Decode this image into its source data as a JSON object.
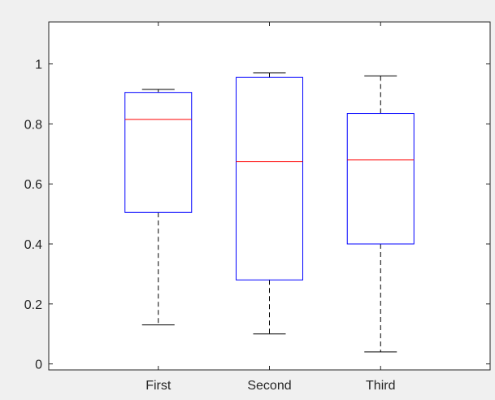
{
  "chart_data": {
    "type": "box",
    "categories": [
      "First",
      "Second",
      "Third"
    ],
    "boxes": [
      {
        "category": "First",
        "min": 0.13,
        "q1": 0.505,
        "median": 0.815,
        "q3": 0.905,
        "max": 0.915
      },
      {
        "category": "Second",
        "min": 0.1,
        "q1": 0.28,
        "median": 0.675,
        "q3": 0.955,
        "max": 0.97
      },
      {
        "category": "Third",
        "min": 0.04,
        "q1": 0.4,
        "median": 0.68,
        "q3": 0.835,
        "max": 0.96
      }
    ],
    "title": "",
    "xlabel": "",
    "ylabel": "",
    "ylim": [
      -0.02,
      1.14
    ],
    "yticks": [
      0,
      0.2,
      0.4,
      0.6,
      0.8,
      1
    ],
    "ytick_labels": [
      "0",
      "0.2",
      "0.4",
      "0.6",
      "0.8",
      "1"
    ],
    "grid": false,
    "colors": {
      "figure_background": "#f0f0f0",
      "axes_background": "#ffffff",
      "axes_edge": "#262626",
      "box": "#0000ff",
      "median": "#ff0000",
      "whisker": "#000000"
    }
  }
}
